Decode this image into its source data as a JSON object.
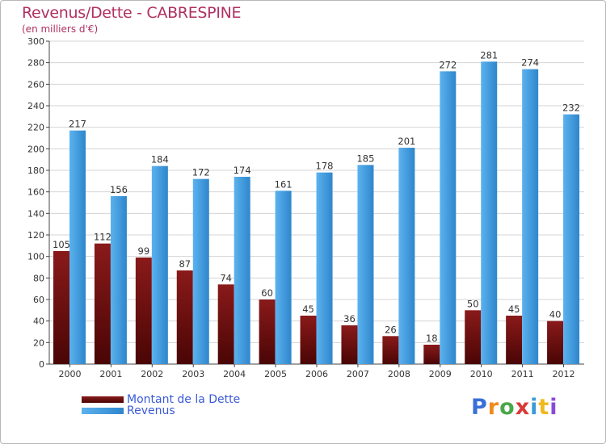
{
  "chart_data": {
    "type": "bar",
    "title": "Revenus/Dette - CABRESPINE",
    "subtitle": "(en milliers d'€)",
    "categories": [
      "2000",
      "2001",
      "2002",
      "2003",
      "2004",
      "2005",
      "2006",
      "2007",
      "2008",
      "2009",
      "2010",
      "2011",
      "2012"
    ],
    "series": [
      {
        "name": "Montant de la Dette",
        "color": "#7a1010",
        "values": [
          105,
          112,
          99,
          87,
          74,
          60,
          45,
          36,
          26,
          18,
          50,
          45,
          40
        ]
      },
      {
        "name": "Revenus",
        "color": "#4a9fe0",
        "values": [
          217,
          156,
          184,
          172,
          174,
          161,
          178,
          185,
          201,
          272,
          281,
          274,
          232
        ]
      }
    ],
    "ylim": [
      0,
      300
    ],
    "yticks": [
      0,
      20,
      40,
      60,
      80,
      100,
      120,
      140,
      160,
      180,
      200,
      220,
      240,
      260,
      280,
      300
    ],
    "grid": true,
    "legend": "bottom-left"
  },
  "logo": {
    "letters": [
      {
        "char": "P",
        "color": "#3a6fd8"
      },
      {
        "char": "r",
        "color": "#f08a1c"
      },
      {
        "char": "o",
        "color": "#4aa84a"
      },
      {
        "char": "x",
        "color": "#d83a3a"
      },
      {
        "char": "i",
        "color": "#3a9ad8"
      },
      {
        "char": "t",
        "color": "#f0b81c"
      },
      {
        "char": "i",
        "color": "#8a4ad8"
      }
    ]
  }
}
